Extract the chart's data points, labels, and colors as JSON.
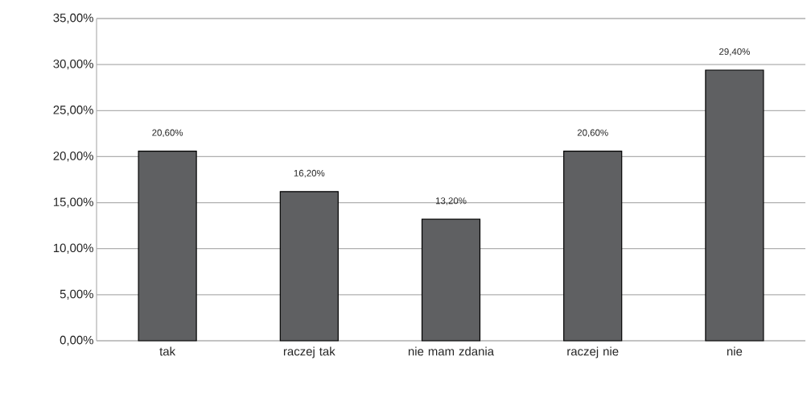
{
  "chart_data": {
    "type": "bar",
    "categories": [
      "tak",
      "raczej tak",
      "nie mam zdania",
      "raczej nie",
      "nie"
    ],
    "values": [
      20.6,
      16.2,
      13.2,
      20.6,
      29.4
    ],
    "value_labels": [
      "20,60%",
      "16,20%",
      "13,20%",
      "20,60%",
      "29,40%"
    ],
    "color": "#5f6062",
    "ylim": [
      0,
      35
    ],
    "yticks": [
      {
        "value": 0,
        "label": "0,00%"
      },
      {
        "value": 5,
        "label": "5,00%"
      },
      {
        "value": 10,
        "label": "10,00%"
      },
      {
        "value": 15,
        "label": "15,00%"
      },
      {
        "value": 20,
        "label": "20,00%"
      },
      {
        "value": 25,
        "label": "25,00%"
      },
      {
        "value": 30,
        "label": "30,00%"
      },
      {
        "value": 35,
        "label": "35,00%"
      }
    ],
    "grid": "y"
  }
}
